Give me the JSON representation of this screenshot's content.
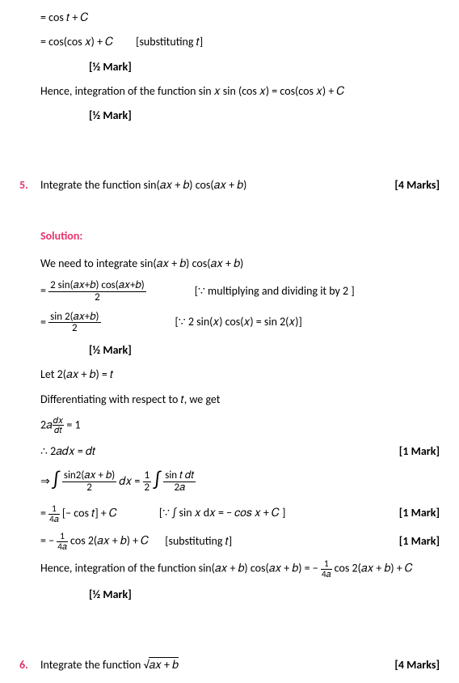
{
  "top": {
    "line1_eq": "= cos 𝑡 + 𝐶",
    "line2_eq": "= cos(cos 𝑥) + 𝐶",
    "line2_note": "[substituting 𝑡]",
    "halfmark": "[½ Mark]",
    "conclusion": "Hence, integration of the function sin 𝑥 sin (cos 𝑥) =  cos(cos 𝑥) + 𝐶"
  },
  "q5": {
    "num": "5.",
    "text": "Integrate the function sin(𝑎𝑥 + 𝑏) cos(𝑎𝑥 + 𝑏)",
    "marks": "[4 Marks]",
    "solution_label": "Solution:",
    "need": "We need to integrate sin(𝑎𝑥 + 𝑏) cos(𝑎𝑥 + 𝑏)",
    "step1_num": "2 sin(𝑎𝑥+𝑏) cos(𝑎𝑥+𝑏)",
    "step1_den": "2",
    "step1_note": "[∵ multiplying and dividing it by 2 ]",
    "step2_num": "sin 2(𝑎𝑥+𝑏)",
    "step2_den": "2",
    "step2_note": "[∵ 2 sin(𝑥) cos(𝑥) = sin 2(𝑥)]",
    "halfmark": "[½ Mark]",
    "let": "Let 2(𝑎𝑥 + 𝑏) = 𝑡",
    "diff": "Differentiating with respect to 𝑡, we get",
    "diff_eq_left": "2𝑎",
    "diff_eq_num": "𝑑𝑥",
    "diff_eq_den": "𝑑𝑡",
    "diff_eq_right": " = 1",
    "therefore": "∴ 2𝑎𝑑𝑥 = 𝑑𝑡",
    "mark1": "[1 Mark]",
    "int_left_num": "sin2(𝑎𝑥 + 𝑏)",
    "int_left_den": "2",
    "int_mid_num": "1",
    "int_mid_den": "2",
    "int_right_num": "sin 𝑡 𝑑𝑡",
    "int_right_den": "2𝑎",
    "dx": " 𝑑𝑥 = ",
    "res1_left": "= ",
    "res1_frac_num": "1",
    "res1_frac_den": "4𝑎",
    "res1_right": "[− cos 𝑡] + 𝐶",
    "res1_note": "[∵ ∫ sin 𝑥 d𝑥 = − 𝑐𝑜𝑠 𝑥 + 𝐶 ]",
    "res2_left": "= − ",
    "res2_frac_num": "1",
    "res2_frac_den": "4𝑎",
    "res2_right": " cos 2(𝑎𝑥 + 𝑏) + 𝐶",
    "res2_note": "[substituting 𝑡]",
    "conclusion_a": "Hence, integration of the function sin(𝑎𝑥 + 𝑏) cos(𝑎𝑥 + 𝑏)  = − ",
    "conclusion_num": "1",
    "conclusion_den": "4𝑎",
    "conclusion_b": " cos 2(𝑎𝑥 + 𝑏) + 𝐶"
  },
  "q6": {
    "num": "6.",
    "text_a": "Integrate the function ",
    "text_b": "√(𝑎𝑥 + 𝑏)",
    "marks": "[4 Marks]"
  }
}
